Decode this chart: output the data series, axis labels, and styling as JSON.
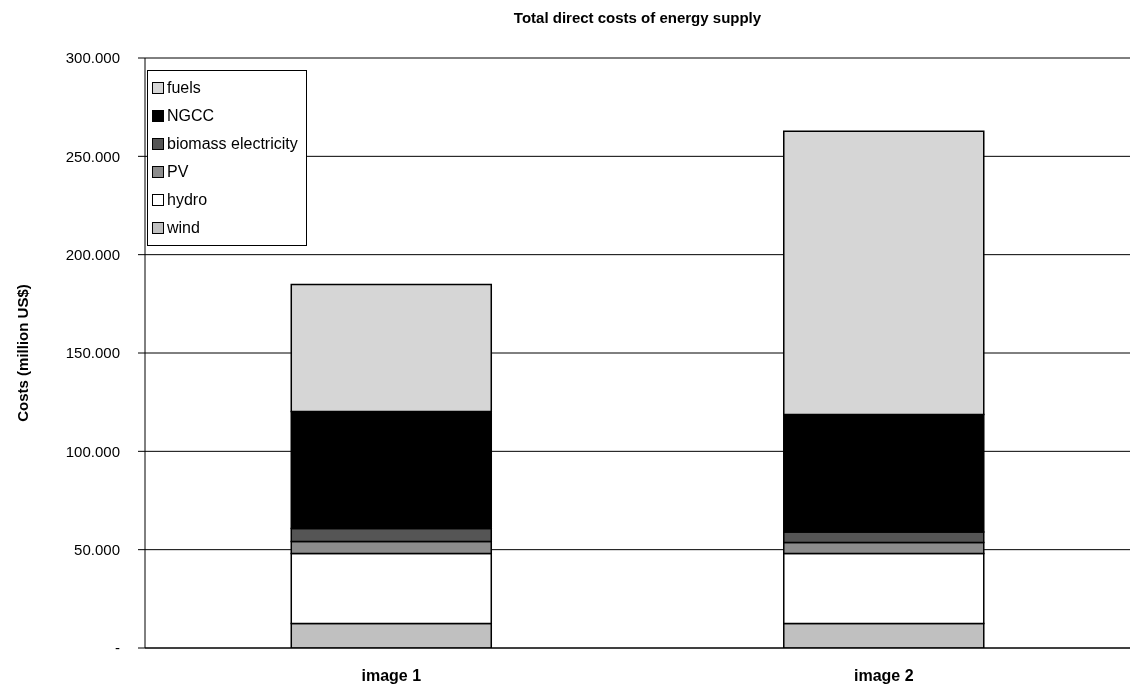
{
  "chart_data": {
    "type": "bar",
    "title": "Total direct costs of energy supply",
    "ylabel": "Costs (million US$)",
    "categories": [
      "image 1",
      "image 2"
    ],
    "stacked": true,
    "series": [
      {
        "name": "wind",
        "color": "#c0c0c0",
        "values": [
          12400,
          12400
        ]
      },
      {
        "name": "hydro",
        "color": "#ffffff",
        "values": [
          35700,
          35700
        ]
      },
      {
        "name": "PV",
        "color": "#8c8c8c",
        "values": [
          6000,
          5600
        ]
      },
      {
        "name": "biomass electricity",
        "color": "#555555",
        "values": [
          6600,
          5300
        ]
      },
      {
        "name": "NGCC",
        "color": "#000000",
        "values": [
          59600,
          59700
        ]
      },
      {
        "name": "fuels",
        "color": "#d6d6d6",
        "values": [
          64500,
          144000
        ]
      }
    ],
    "ylim": [
      0,
      300000
    ],
    "yticks": [
      {
        "value": 0,
        "label": "-"
      },
      {
        "value": 50000,
        "label": "50.000"
      },
      {
        "value": 100000,
        "label": "100.000"
      },
      {
        "value": 150000,
        "label": "150.000"
      },
      {
        "value": 200000,
        "label": "200.000"
      },
      {
        "value": 250000,
        "label": "250.000"
      },
      {
        "value": 300000,
        "label": "300.000"
      }
    ],
    "grid": "y",
    "legend": "top left"
  }
}
